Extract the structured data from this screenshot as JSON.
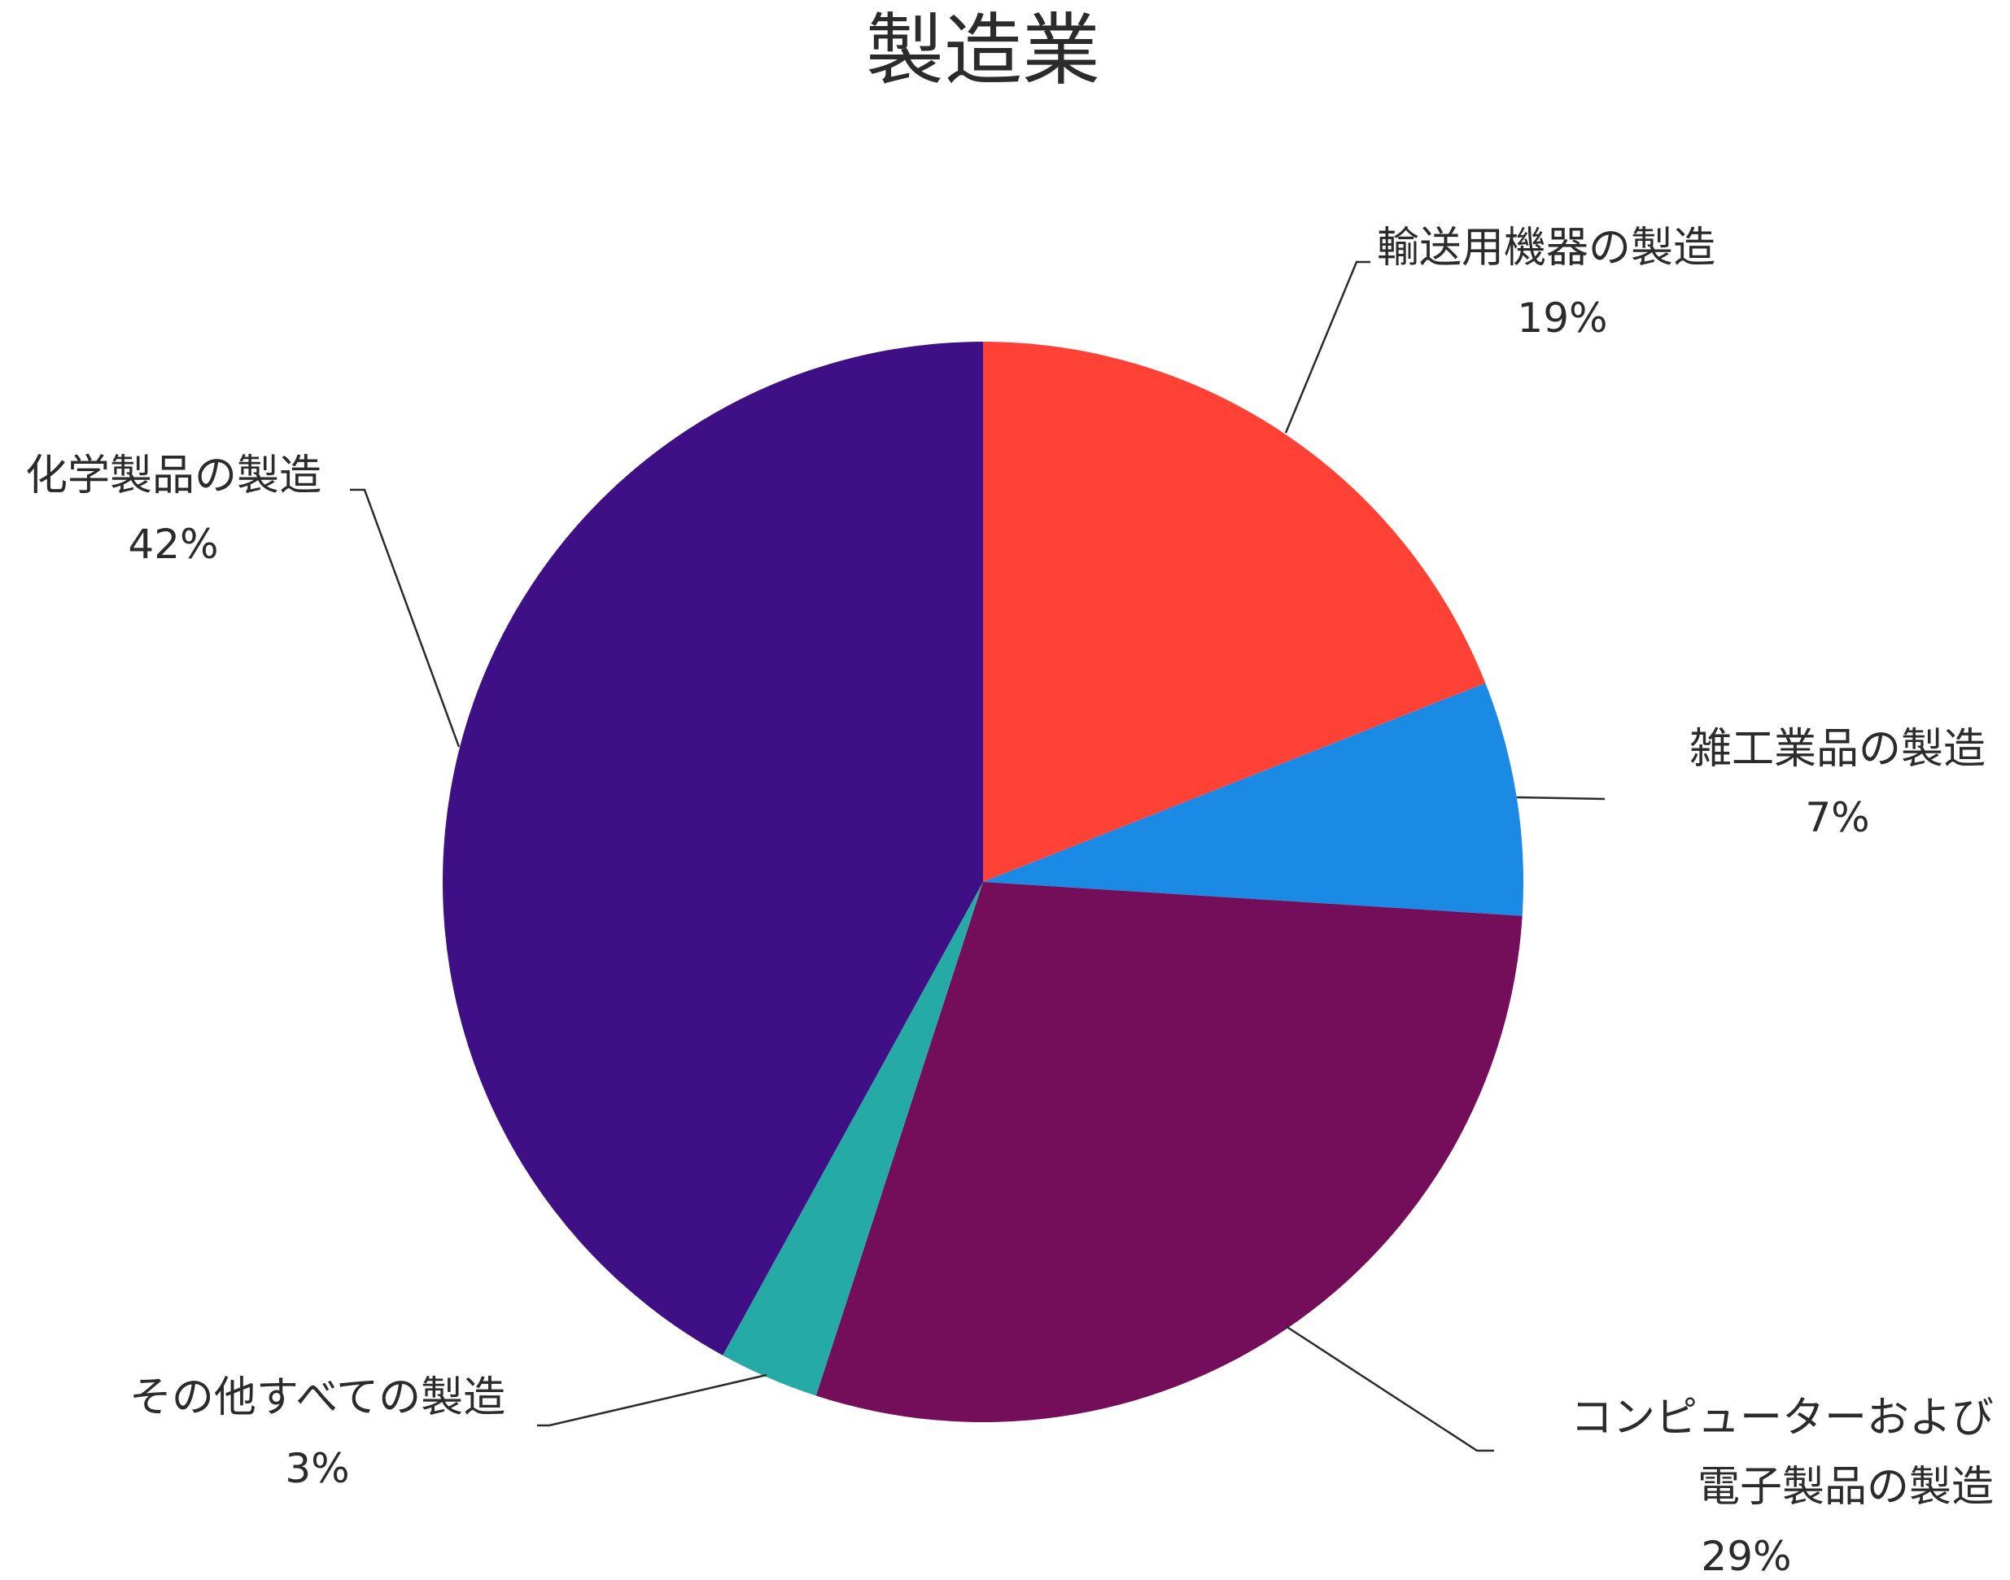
{
  "chart_data": {
    "type": "pie",
    "title": "製造業",
    "start_angle_deg": 0,
    "direction": "clockwise",
    "slices": [
      {
        "label_lines": [
          "輸送用機器の製造"
        ],
        "value": 19,
        "display": "19%",
        "color": "#ff4136"
      },
      {
        "label_lines": [
          "雑工業品の製造"
        ],
        "value": 7,
        "display": "7%",
        "color": "#1a8ae5"
      },
      {
        "label_lines": [
          "コンピューターおよび",
          "電子製品の製造"
        ],
        "value": 29,
        "display": "29%",
        "color": "#740e5a"
      },
      {
        "label_lines": [
          "その他すべての製造"
        ],
        "value": 3,
        "display": "3%",
        "color": "#26aaa6"
      },
      {
        "label_lines": [
          "化学製品の製造"
        ],
        "value": 42,
        "display": "42%",
        "color": "#3f0f85"
      }
    ]
  }
}
